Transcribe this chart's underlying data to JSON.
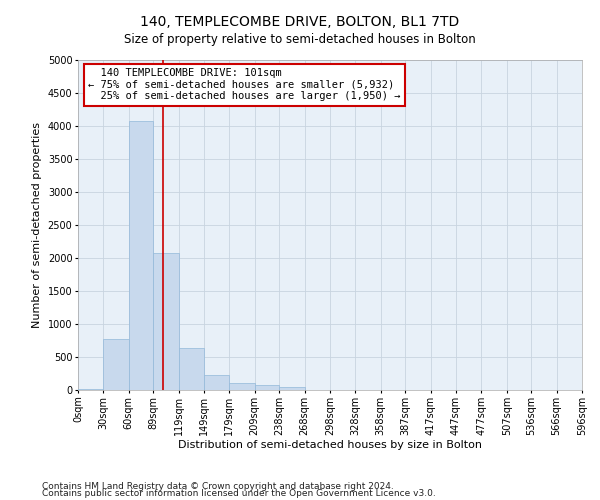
{
  "title": "140, TEMPLECOMBE DRIVE, BOLTON, BL1 7TD",
  "subtitle": "Size of property relative to semi-detached houses in Bolton",
  "xlabel": "Distribution of semi-detached houses by size in Bolton",
  "ylabel": "Number of semi-detached properties",
  "property_label": "140 TEMPLECOMBE DRIVE: 101sqm",
  "pct_smaller": 75,
  "pct_smaller_n": 5932,
  "pct_larger": 25,
  "pct_larger_n": 1950,
  "footnote1": "Contains HM Land Registry data © Crown copyright and database right 2024.",
  "footnote2": "Contains public sector information licensed under the Open Government Licence v3.0.",
  "bin_edges": [
    0,
    30,
    60,
    89,
    119,
    149,
    179,
    209,
    238,
    268,
    298,
    328,
    358,
    387,
    417,
    447,
    477,
    507,
    536,
    566,
    596
  ],
  "bin_labels": [
    "0sqm",
    "30sqm",
    "60sqm",
    "89sqm",
    "119sqm",
    "149sqm",
    "179sqm",
    "209sqm",
    "238sqm",
    "268sqm",
    "298sqm",
    "328sqm",
    "358sqm",
    "387sqm",
    "417sqm",
    "447sqm",
    "477sqm",
    "507sqm",
    "536sqm",
    "566sqm",
    "596sqm"
  ],
  "bar_values": [
    20,
    780,
    4080,
    2080,
    630,
    220,
    110,
    80,
    40,
    0,
    0,
    0,
    0,
    0,
    0,
    0,
    0,
    0,
    0,
    0
  ],
  "bar_color": "#c8d9ed",
  "bar_edge_color": "#92b8d9",
  "vline_color": "#cc0000",
  "vline_x": 101,
  "ylim": [
    0,
    5000
  ],
  "yticks": [
    0,
    500,
    1000,
    1500,
    2000,
    2500,
    3000,
    3500,
    4000,
    4500,
    5000
  ],
  "annotation_box_color": "#cc0000",
  "bg_color": "#ffffff",
  "ax_bg_color": "#e8f0f8",
  "grid_color": "#c8d4e0",
  "title_fontsize": 10,
  "subtitle_fontsize": 8.5,
  "axis_label_fontsize": 8,
  "tick_fontsize": 7,
  "annotation_fontsize": 7.5,
  "footnote_fontsize": 6.5
}
